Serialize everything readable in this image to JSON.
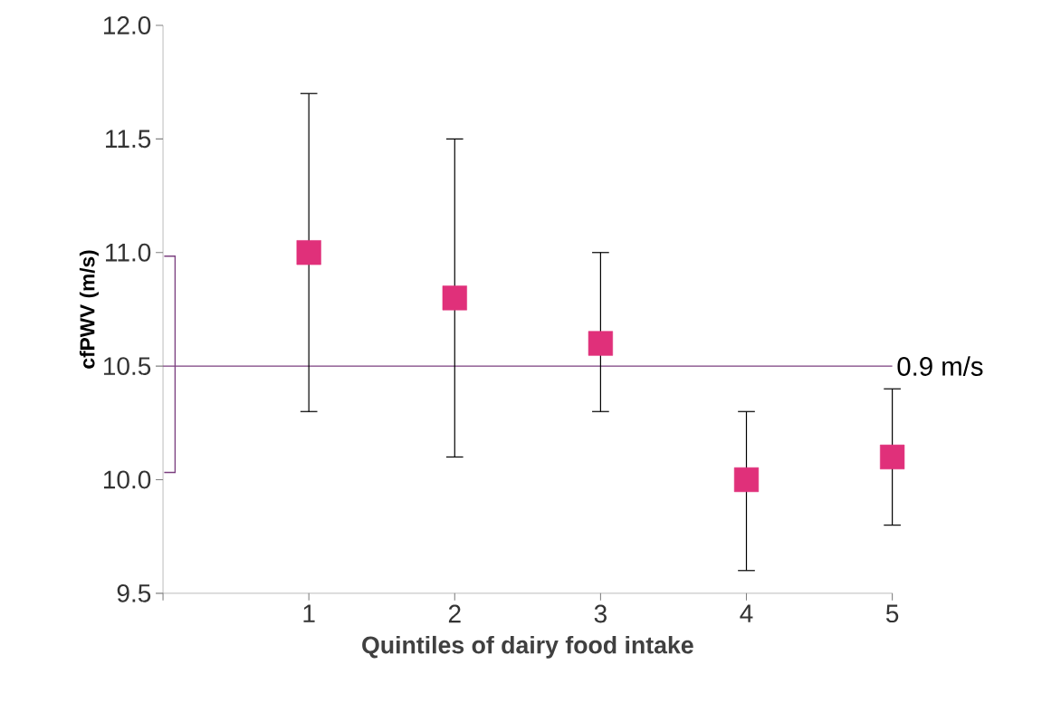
{
  "chart_data": {
    "type": "scatter",
    "xlabel": "Quintiles of dairy food intake",
    "ylabel": "cfPWV (m/s)",
    "x": [
      1,
      2,
      3,
      4,
      5
    ],
    "values": [
      11.0,
      10.8,
      10.6,
      10.0,
      10.1
    ],
    "color": "#e0307a",
    "marker": "square",
    "errors": [
      [
        10.3,
        11.7
      ],
      [
        10.1,
        11.5
      ],
      [
        10.3,
        11.0
      ],
      [
        9.6,
        10.3
      ],
      [
        9.8,
        10.4
      ]
    ],
    "xlim": [
      0,
      5
    ],
    "xticks": [
      {
        "value": 0,
        "label": null
      },
      1,
      2,
      3,
      4,
      5
    ],
    "ylim": [
      9.5,
      12.0
    ],
    "yticks": [
      {
        "value": 9.5,
        "label": "9.5"
      },
      {
        "value": 10.0,
        "label": "10.0"
      },
      {
        "value": 10.5,
        "label": "10.5"
      },
      {
        "value": 11.0,
        "label": "11.0"
      },
      {
        "value": 11.5,
        "label": "11.5"
      },
      {
        "value": 12.0,
        "label": "12.0"
      }
    ],
    "ref_lines": [
      {
        "axis": "y",
        "value": 10.5,
        "label": "0.9 m/s",
        "color": "#7b3f7f"
      }
    ]
  }
}
